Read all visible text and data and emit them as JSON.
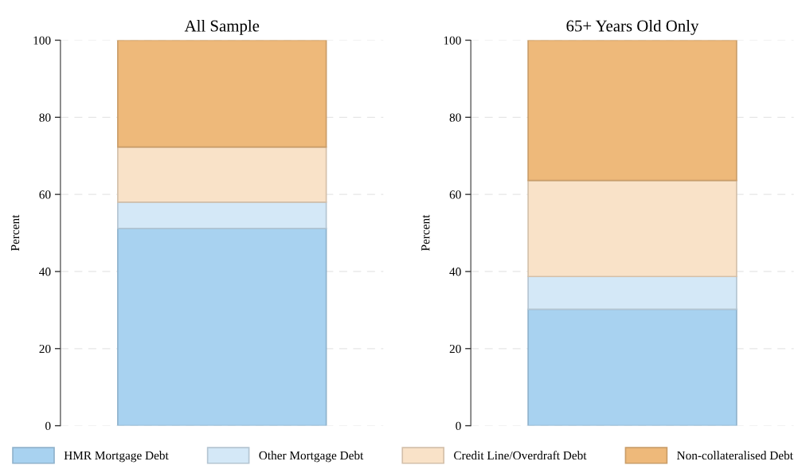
{
  "chart_data": [
    {
      "type": "bar",
      "title": "All Sample",
      "ylabel": "Percent",
      "categories": [
        null
      ],
      "stacked": true,
      "ylim": [
        0,
        100
      ],
      "yticks": [
        0,
        20,
        40,
        60,
        80,
        100
      ],
      "grid": "y",
      "legend": "bottom",
      "series": [
        {
          "name": "HMR Mortgage Debt",
          "color": "#a8d2f0",
          "values": [
            51.2
          ]
        },
        {
          "name": "Other Mortgage Debt",
          "color": "#d4e8f7",
          "values": [
            6.8
          ]
        },
        {
          "name": "Credit Line/Overdraft Debt",
          "color": "#f9e2c8",
          "values": [
            14.3
          ]
        },
        {
          "name": "Non-collateralised Debt",
          "color": "#eeb97a",
          "values": [
            27.7
          ]
        }
      ]
    },
    {
      "type": "bar",
      "title": "65+ Years Old Only",
      "ylabel": "Percent",
      "categories": [
        null
      ],
      "stacked": true,
      "ylim": [
        0,
        100
      ],
      "yticks": [
        0,
        20,
        40,
        60,
        80,
        100
      ],
      "grid": "y",
      "legend": "bottom",
      "series": [
        {
          "name": "HMR Mortgage Debt",
          "color": "#a8d2f0",
          "values": [
            30.2
          ]
        },
        {
          "name": "Other Mortgage Debt",
          "color": "#d4e8f7",
          "values": [
            8.5
          ]
        },
        {
          "name": "Credit Line/Overdraft Debt",
          "color": "#f9e2c8",
          "values": [
            24.9
          ]
        },
        {
          "name": "Non-collateralised Debt",
          "color": "#eeb97a",
          "values": [
            36.4
          ]
        }
      ]
    }
  ]
}
